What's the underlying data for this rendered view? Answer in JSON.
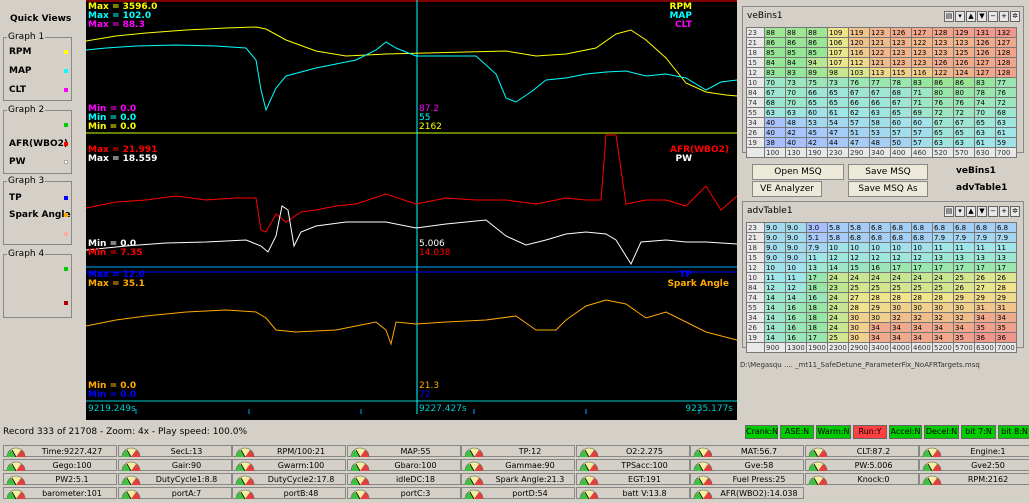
{
  "quick_views": {
    "title": "Quick Views",
    "groups": [
      {
        "title": "Graph 1",
        "items": [
          {
            "label": "RPM",
            "color": "#ffff00"
          },
          {
            "label": "MAP",
            "color": "#00ffff"
          },
          {
            "label": "CLT",
            "color": "#ff00ff"
          }
        ]
      },
      {
        "title": "Graph 2",
        "items": [
          {
            "label": "",
            "color": "#00cc00"
          },
          {
            "label": "AFR(WBO2)",
            "color": "#ff0000"
          },
          {
            "label": "PW",
            "color": "#ffffff"
          }
        ]
      },
      {
        "title": "Graph 3",
        "items": [
          {
            "label": "TP",
            "color": "#0000ff"
          },
          {
            "label": "Spark Angle",
            "color": "#ffaa00"
          },
          {
            "label": "",
            "color": "#ffaaaa"
          }
        ]
      },
      {
        "title": "Graph 4",
        "items": [
          {
            "label": "",
            "color": "#00cc00"
          },
          {
            "label": "",
            "color": "#aa0000"
          }
        ]
      }
    ]
  },
  "graph": {
    "g1": {
      "max_rpm": "Max = 3596.0",
      "max_map": "Max = 102.0",
      "max_clt": "Max = 88.3",
      "min_rpm": "Min = 0.0",
      "min_map": "Min = 0.0",
      "min_clt": "Min = 0.0",
      "legend_rpm": "RPM",
      "legend_map": "MAP",
      "legend_clt": "CLT",
      "cursor_v1": "87.2",
      "cursor_v2": "55",
      "cursor_v3": "2162"
    },
    "g2": {
      "max_afr": "Max = 21.991",
      "max_pw": "Max = 18.559",
      "min_pw": "Min = 0.0",
      "min_afr": "Min = 7.35",
      "legend_afr": "AFR(WBO2)",
      "legend_pw": "PW",
      "cursor_v1": "5.006",
      "cursor_v2": "14.038"
    },
    "g3": {
      "max_tp": "Max = 12.0",
      "max_spark": "Max = 35.1",
      "min_spark": "Min = 0.0",
      "min_tp": "Min = 0.0",
      "legend_tp": "TP",
      "legend_spark": "Spark Angle",
      "cursor_v1": "21.3",
      "cursor_v2": "72"
    },
    "time_start": "9219.249s",
    "time_cursor": "9227.427s",
    "time_end": "9235.177s"
  },
  "veBins": {
    "title": "veBins1",
    "rows": [
      [
        "23",
        "88",
        "88",
        "88",
        "109",
        "119",
        "123",
        "126",
        "127",
        "128",
        "129",
        "131",
        "132"
      ],
      [
        "21",
        "86",
        "86",
        "86",
        "106",
        "120",
        "121",
        "123",
        "122",
        "123",
        "123",
        "126",
        "127"
      ],
      [
        "18",
        "85",
        "85",
        "85",
        "107",
        "116",
        "122",
        "123",
        "123",
        "123",
        "125",
        "126",
        "128"
      ],
      [
        "15",
        "84",
        "84",
        "94",
        "107",
        "112",
        "121",
        "123",
        "123",
        "126",
        "126",
        "127",
        "128"
      ],
      [
        "12",
        "83",
        "83",
        "89",
        "98",
        "103",
        "113",
        "115",
        "116",
        "122",
        "124",
        "127",
        "128"
      ],
      [
        "10",
        "70",
        "73",
        "75",
        "73",
        "76",
        "77",
        "78",
        "83",
        "86",
        "86",
        "83",
        "77"
      ],
      [
        "84",
        "67",
        "70",
        "66",
        "65",
        "67",
        "67",
        "68",
        "71",
        "80",
        "80",
        "78",
        "76"
      ],
      [
        "74",
        "68",
        "70",
        "65",
        "65",
        "66",
        "66",
        "67",
        "71",
        "76",
        "76",
        "74",
        "72"
      ],
      [
        "55",
        "63",
        "63",
        "60",
        "61",
        "62",
        "63",
        "65",
        "69",
        "72",
        "72",
        "70",
        "68"
      ],
      [
        "34",
        "40",
        "48",
        "53",
        "54",
        "57",
        "58",
        "60",
        "60",
        "67",
        "67",
        "65",
        "63"
      ],
      [
        "26",
        "40",
        "42",
        "45",
        "47",
        "51",
        "53",
        "57",
        "57",
        "65",
        "65",
        "63",
        "61"
      ],
      [
        "19",
        "38",
        "40",
        "42",
        "44",
        "47",
        "48",
        "50",
        "57",
        "63",
        "63",
        "61",
        "59"
      ],
      [
        "",
        "100",
        "130",
        "190",
        "230",
        "290",
        "340",
        "400",
        "460",
        "520",
        "570",
        "630",
        "700"
      ]
    ]
  },
  "controls": {
    "open_msq": "Open MSQ",
    "save_msq": "Save MSQ",
    "ve_analyzer": "VE Analyzer",
    "save_msq_as": "Save MSQ As",
    "label_ve": "veBins1",
    "label_adv": "advTable1"
  },
  "advTable": {
    "title": "advTable1",
    "rows": [
      [
        "23",
        "9.0",
        "9.0",
        "3.0",
        "5.8",
        "5.8",
        "6.8",
        "6.8",
        "6.8",
        "6.8",
        "6.8",
        "6.8",
        "6.8"
      ],
      [
        "21",
        "9.0",
        "9.0",
        "5.1",
        "5.8",
        "6.8",
        "6.8",
        "6.8",
        "6.8",
        "7.9",
        "7.9",
        "7.9",
        "7.9"
      ],
      [
        "18",
        "9.0",
        "9.0",
        "7.9",
        "10",
        "10",
        "10",
        "10",
        "10",
        "11",
        "11",
        "11",
        "11"
      ],
      [
        "15",
        "9.0",
        "9.0",
        "11",
        "12",
        "12",
        "12",
        "12",
        "12",
        "13",
        "13",
        "13",
        "13"
      ],
      [
        "12",
        "10",
        "10",
        "13",
        "14",
        "15",
        "16",
        "17",
        "17",
        "17",
        "17",
        "17",
        "17"
      ],
      [
        "10",
        "11",
        "11",
        "17",
        "24",
        "24",
        "24",
        "24",
        "24",
        "24",
        "25",
        "26",
        "26"
      ],
      [
        "84",
        "12",
        "12",
        "18",
        "23",
        "25",
        "25",
        "25",
        "25",
        "25",
        "26",
        "27",
        "28"
      ],
      [
        "74",
        "14",
        "14",
        "16",
        "24",
        "27",
        "28",
        "28",
        "28",
        "28",
        "29",
        "29",
        "29"
      ],
      [
        "55",
        "14",
        "16",
        "18",
        "24",
        "28",
        "29",
        "30",
        "30",
        "30",
        "30",
        "31",
        "31"
      ],
      [
        "34",
        "14",
        "16",
        "18",
        "24",
        "30",
        "30",
        "32",
        "32",
        "32",
        "32",
        "34",
        "34"
      ],
      [
        "26",
        "14",
        "16",
        "18",
        "24",
        "30",
        "34",
        "34",
        "34",
        "34",
        "34",
        "35",
        "35"
      ],
      [
        "19",
        "14",
        "16",
        "17",
        "25",
        "30",
        "34",
        "34",
        "34",
        "34",
        "35",
        "36",
        "36"
      ],
      [
        "",
        "900",
        "1300",
        "1900",
        "2300",
        "2900",
        "3400",
        "4000",
        "4600",
        "5200",
        "5700",
        "6300",
        "7000"
      ]
    ]
  },
  "file_path": "D:\\Megasqu .... _mt11_SafeDetune_ParameterFix_NoAFRTargets.msq",
  "status": {
    "record": "Record 333 of 21708 - Zoom: 4x - Play speed: 100.0%"
  },
  "indicators": [
    {
      "label": "Crank:N",
      "color": "#00cc00"
    },
    {
      "label": "ASE:N",
      "color": "#00cc00"
    },
    {
      "label": "Warm:N",
      "color": "#00cc00"
    },
    {
      "label": "Run:Y",
      "color": "#ff4040"
    },
    {
      "label": "Accel:N",
      "color": "#00cc00"
    },
    {
      "label": "Decel:N",
      "color": "#00cc00"
    },
    {
      "label": "bit 7:N",
      "color": "#00cc00"
    },
    {
      "label": "bit 8:N",
      "color": "#00cc00"
    }
  ],
  "gauges": [
    [
      "Time:9227.427",
      "SecL:13",
      "RPM/100:21",
      "MAP:55",
      "TP:12",
      "O2:2.275",
      "MAT:56.7",
      "CLT:87.2",
      "Engine:1"
    ],
    [
      "Gego:100",
      "Gair:90",
      "Gwarm:100",
      "Gbaro:100",
      "Gammae:90",
      "TPSacc:100",
      "Gve:58",
      "PW:5.006",
      "Gve2:50"
    ],
    [
      "PW2:5.1",
      "DutyCycle1:8.8",
      "DutyCycle2:17.8",
      "idleDC:18",
      "Spark Angle:21.3",
      "EGT:191",
      "Fuel Press:25",
      "Knock:0",
      "RPM:2162"
    ],
    [
      "barometer:101",
      "portA:7",
      "portB:48",
      "portC:3",
      "portD:54",
      "batt V:13.8",
      "AFR(WBO2):14.038",
      "",
      ""
    ]
  ]
}
